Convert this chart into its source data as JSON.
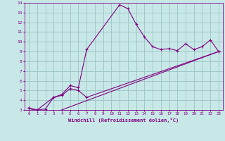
{
  "xlabel": "Windchill (Refroidissement éolien,°C)",
  "bg_color": "#c8e8e8",
  "line_color": "#800080",
  "grid_color": "#a0c8c8",
  "xlim": [
    -0.5,
    23.5
  ],
  "ylim": [
    3,
    14
  ],
  "xticks": [
    0,
    1,
    2,
    3,
    4,
    5,
    6,
    7,
    8,
    9,
    10,
    11,
    12,
    13,
    14,
    15,
    16,
    17,
    18,
    19,
    20,
    21,
    22,
    23
  ],
  "yticks": [
    3,
    4,
    5,
    6,
    7,
    8,
    9,
    10,
    11,
    12,
    13,
    14
  ],
  "line1_x": [
    0,
    1,
    2,
    3,
    4,
    5,
    6,
    7,
    11,
    12,
    13,
    14,
    15,
    16,
    17,
    18,
    19,
    20,
    21,
    22,
    23
  ],
  "line1_y": [
    3.2,
    3.0,
    3.1,
    4.3,
    4.6,
    5.5,
    5.3,
    9.2,
    13.8,
    13.4,
    11.8,
    10.5,
    9.5,
    9.2,
    9.3,
    9.1,
    9.8,
    9.2,
    9.5,
    10.2,
    9.0
  ],
  "line2_x": [
    0,
    1,
    3,
    4,
    5,
    6,
    7,
    23
  ],
  "line2_y": [
    3.2,
    3.0,
    4.3,
    4.5,
    5.2,
    5.0,
    4.3,
    9.0
  ],
  "line3_x": [
    0,
    1,
    3,
    23
  ],
  "line3_y": [
    3.2,
    2.85,
    2.7,
    9.0
  ]
}
